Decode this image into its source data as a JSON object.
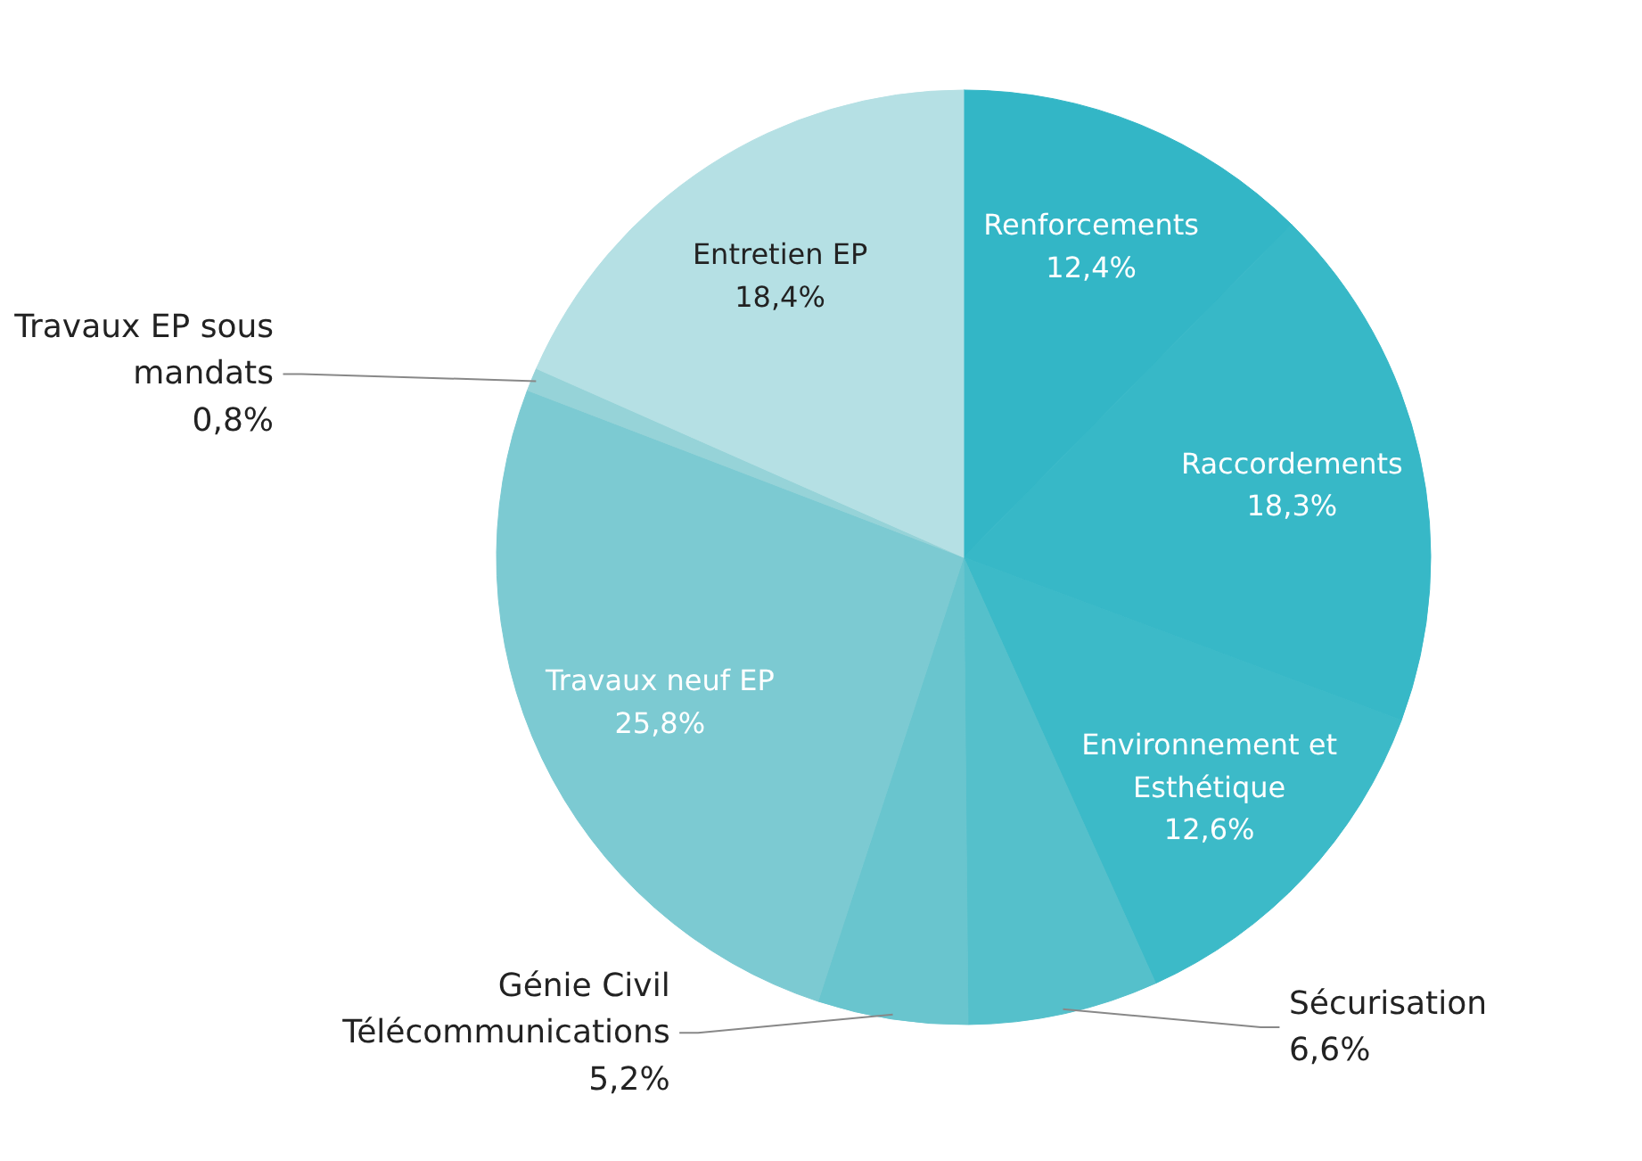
{
  "chart_data": {
    "type": "pie",
    "categories": [
      "Renforcements",
      "Raccordements",
      "Environnement et Esthétique",
      "Sécurisation",
      "Génie Civil Télécommunications",
      "Travaux neuf EP",
      "Travaux EP sous mandats",
      "Entretien EP"
    ],
    "values": [
      12.4,
      18.3,
      12.6,
      6.6,
      5.2,
      25.8,
      0.8,
      18.4
    ],
    "value_labels": [
      "12,4%",
      "18,3%",
      "12,6%",
      "6,6%",
      "5,2%",
      "25,8%",
      "0,8%",
      "18,4%"
    ],
    "colors": [
      "#33b6c6",
      "#37b8c7",
      "#3cbac8",
      "#55c0cb",
      "#69c5ce",
      "#7ccad2",
      "#96d3d8",
      "#b5e0e4"
    ]
  }
}
